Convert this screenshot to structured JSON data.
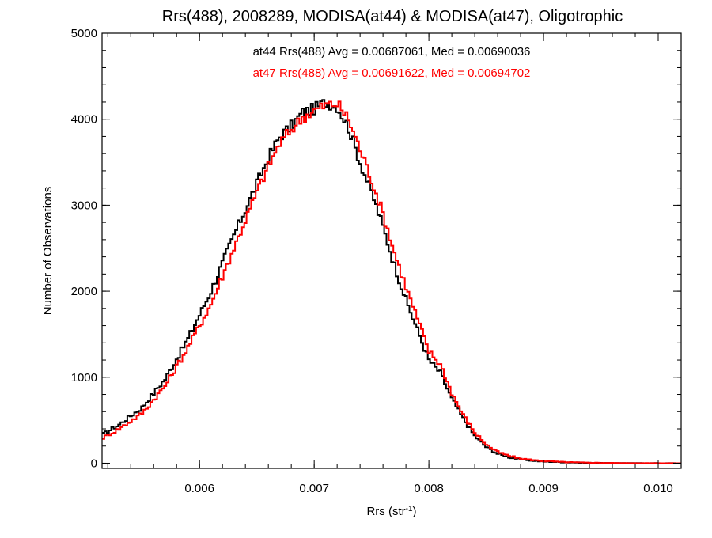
{
  "colors": {
    "background": "#ffffff",
    "axes": "#000000",
    "series_at44": "#000000",
    "series_at47": "#ff0000"
  },
  "chart_data": {
    "type": "line",
    "style": "histogram-steps",
    "title": "Rrs(488), 2008289, MODISA(at44) & MODISA(at47), Oligotrophic",
    "xlabel": "Rrs (str",
    "xlabel_superscript": "-1",
    "xlabel_close": ")",
    "ylabel": "Number of Observations",
    "xlim": [
      0.00515,
      0.0102
    ],
    "ylim": [
      -60,
      5000
    ],
    "xticks": [
      0.006,
      0.007,
      0.008,
      0.009,
      0.01
    ],
    "xtick_labels": [
      "0.006",
      "0.007",
      "0.008",
      "0.009",
      "0.010"
    ],
    "yticks": [
      0,
      1000,
      2000,
      3000,
      4000,
      5000
    ],
    "ytick_labels": [
      "0",
      "1000",
      "2000",
      "3000",
      "4000",
      "5000"
    ],
    "grid": false,
    "annotations": [
      {
        "text": "at44 Rrs(488) Avg = 0.00687061, Med = 0.00690036",
        "color": "#000000"
      },
      {
        "text": "at47 Rrs(488) Avg = 0.00691622, Med = 0.00694702",
        "color": "#ff0000"
      }
    ],
    "series": [
      {
        "color": "#000000",
        "x": [
          0.00515,
          0.0053,
          0.0055,
          0.0057,
          0.0059,
          0.0061,
          0.0063,
          0.0065,
          0.0066,
          0.0067,
          0.0068,
          0.0069,
          0.007,
          0.0071,
          0.0072,
          0.0073,
          0.0074,
          0.0075,
          0.0076,
          0.0077,
          0.0078,
          0.0079,
          0.008,
          0.0081,
          0.0082,
          0.0083,
          0.0084,
          0.0085,
          0.0086,
          0.0087,
          0.0088,
          0.0089,
          0.009,
          0.0092,
          0.0094,
          0.0096,
          0.0098,
          0.0102
        ],
        "y": [
          330,
          450,
          650,
          980,
          1450,
          2000,
          2650,
          3250,
          3550,
          3800,
          3920,
          4080,
          4120,
          4200,
          4150,
          3900,
          3500,
          3150,
          2750,
          2300,
          1900,
          1550,
          1200,
          1050,
          750,
          520,
          320,
          190,
          110,
          70,
          45,
          30,
          20,
          10,
          4,
          2,
          1,
          0
        ]
      },
      {
        "color": "#ff0000",
        "x": [
          0.00515,
          0.0053,
          0.0055,
          0.0057,
          0.0059,
          0.0061,
          0.0063,
          0.0065,
          0.0066,
          0.0067,
          0.0068,
          0.0069,
          0.007,
          0.0071,
          0.0072,
          0.0073,
          0.0074,
          0.0075,
          0.0076,
          0.0077,
          0.0078,
          0.0079,
          0.008,
          0.0081,
          0.0082,
          0.0083,
          0.0084,
          0.0085,
          0.0086,
          0.0087,
          0.0088,
          0.0089,
          0.009,
          0.0092,
          0.0094,
          0.0096,
          0.0098,
          0.0102
        ],
        "y": [
          290,
          400,
          580,
          900,
          1350,
          1850,
          2500,
          3150,
          3450,
          3720,
          3880,
          4020,
          4100,
          4160,
          4180,
          4000,
          3650,
          3300,
          2900,
          2450,
          2050,
          1680,
          1300,
          1150,
          820,
          560,
          360,
          220,
          130,
          85,
          55,
          38,
          25,
          12,
          6,
          3,
          1,
          0
        ]
      }
    ]
  }
}
